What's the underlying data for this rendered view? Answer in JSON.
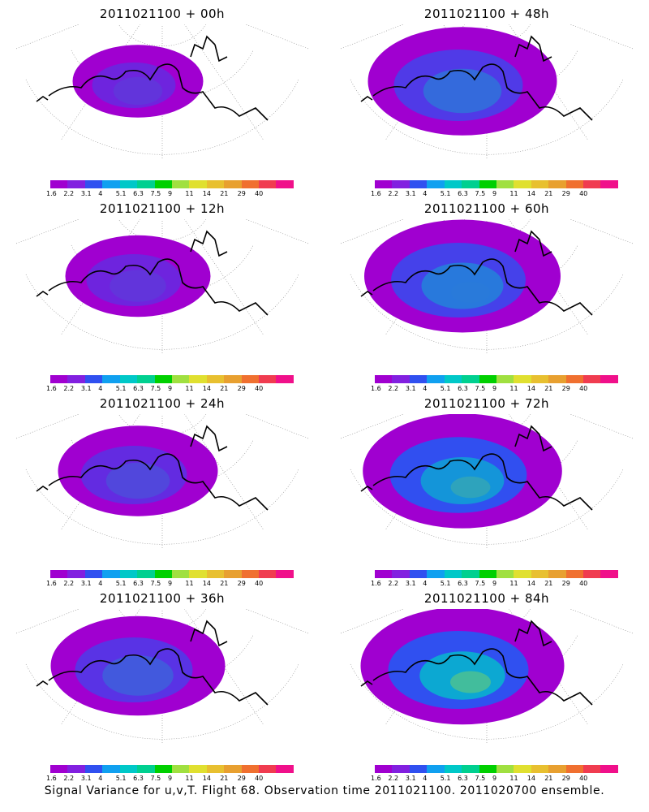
{
  "panels": [
    {
      "title": "2011021100 + 00h",
      "intensity": 0.25,
      "extent": 0.45
    },
    {
      "title": "2011021100 + 48h",
      "intensity": 0.4,
      "extent": 0.85
    },
    {
      "title": "2011021100 + 12h",
      "intensity": 0.25,
      "extent": 0.55
    },
    {
      "title": "2011021100 + 60h",
      "intensity": 0.45,
      "extent": 0.9
    },
    {
      "title": "2011021100 + 24h",
      "intensity": 0.3,
      "extent": 0.65
    },
    {
      "title": "2011021100 + 72h",
      "intensity": 0.55,
      "extent": 0.92
    },
    {
      "title": "2011021100 + 36h",
      "intensity": 0.35,
      "extent": 0.75
    },
    {
      "title": "2011021100 + 84h",
      "intensity": 0.65,
      "extent": 0.95
    }
  ],
  "colorbar": {
    "colors": [
      "#a000d0",
      "#8220e0",
      "#3050f0",
      "#10a0f0",
      "#00c8c8",
      "#00d090",
      "#00d000",
      "#a0e040",
      "#e0e030",
      "#e8c030",
      "#e8a030",
      "#f07030",
      "#f03c50",
      "#f0108a"
    ],
    "labels": [
      "1.6",
      "2.2",
      "3.1",
      "4",
      "5.1",
      "6.3",
      "7.5",
      "9",
      "11",
      "14",
      "21",
      "29",
      "40",
      ""
    ]
  },
  "footer": "Signal Variance for u,v,T. Flight 68. Observation time 2011021100. 2011020700 ensemble."
}
